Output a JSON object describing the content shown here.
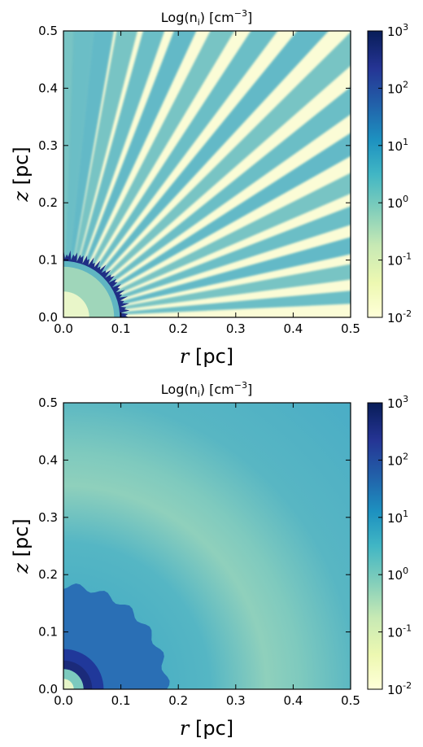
{
  "chart_data": [
    {
      "type": "heatmap",
      "title_main": "Log(n",
      "title_sub": "i",
      "title_unit": ") [cm",
      "title_exp": "−3",
      "title_end": "]",
      "xlabel_var": "r",
      "xlabel_unit": "[pc]",
      "ylabel_var": "z",
      "ylabel_unit": "[pc]",
      "xlim": [
        0.0,
        0.5
      ],
      "ylim": [
        0.0,
        0.5
      ],
      "xticks": [
        "0.0",
        "0.1",
        "0.2",
        "0.3",
        "0.4",
        "0.5"
      ],
      "yticks": [
        "0.0",
        "0.1",
        "0.2",
        "0.3",
        "0.4",
        "0.5"
      ],
      "colorbar": {
        "scale": "log",
        "range": [
          0.01,
          1000
        ],
        "ticks": [
          {
            "base": "10",
            "exp": "3"
          },
          {
            "base": "10",
            "exp": "2"
          },
          {
            "base": "10",
            "exp": "1"
          },
          {
            "base": "10",
            "exp": "0"
          },
          {
            "base": "10",
            "exp": "-1"
          },
          {
            "base": "10",
            "exp": "-2"
          }
        ],
        "colors": [
          "#ffffd9",
          "#edf8b1",
          "#c7e9b4",
          "#7fcdbb",
          "#41b6c4",
          "#1d91c0",
          "#225ea8",
          "#253494",
          "#081d58"
        ]
      },
      "description_values": {
        "core_radius_pc": 0.11,
        "core_log_density": 2.6,
        "ray_count": 17,
        "ray_log_density": 0.9,
        "background_log_density": -1.8
      }
    },
    {
      "type": "heatmap",
      "title_main": "Log(n",
      "title_sub": "i",
      "title_unit": ") [cm",
      "title_exp": "−3",
      "title_end": "]",
      "xlabel_var": "r",
      "xlabel_unit": "[pc]",
      "ylabel_var": "z",
      "ylabel_unit": "[pc]",
      "xlim": [
        0.0,
        0.5
      ],
      "ylim": [
        0.0,
        0.5
      ],
      "xticks": [
        "0.0",
        "0.1",
        "0.2",
        "0.3",
        "0.4",
        "0.5"
      ],
      "yticks": [
        "0.0",
        "0.1",
        "0.2",
        "0.3",
        "0.4",
        "0.5"
      ],
      "colorbar": {
        "scale": "log",
        "range": [
          0.01,
          1000
        ],
        "ticks": [
          {
            "base": "10",
            "exp": "3"
          },
          {
            "base": "10",
            "exp": "2"
          },
          {
            "base": "10",
            "exp": "1"
          },
          {
            "base": "10",
            "exp": "0"
          },
          {
            "base": "10",
            "exp": "-1"
          },
          {
            "base": "10",
            "exp": "-2"
          }
        ],
        "colors": [
          "#ffffd9",
          "#edf8b1",
          "#c7e9b4",
          "#7fcdbb",
          "#41b6c4",
          "#1d91c0",
          "#225ea8",
          "#253494",
          "#081d58"
        ]
      },
      "description_values": {
        "core_radius_pc": 0.18,
        "core_log_density": 1.8,
        "shell_radius_pc": 0.3,
        "shell_log_density": 0.2,
        "background_log_density": 0.9
      }
    }
  ]
}
